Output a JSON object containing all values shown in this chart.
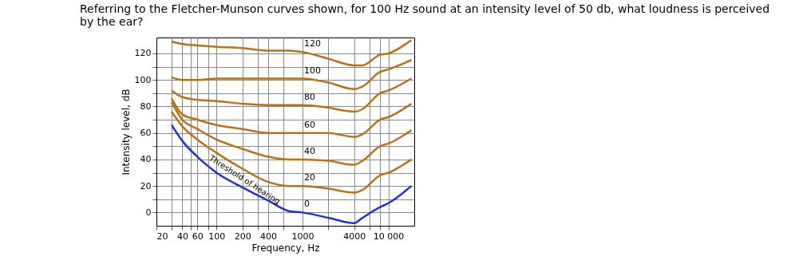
{
  "chart_data": {
    "type": "line",
    "title": "Referring to the Fletcher-Munson curves shown, for 100 Hz sound at an intensity level of 50 db, what loudness is perceived by the ear?",
    "xlabel": "Frequency, Hz",
    "ylabel": "Intensity level, dB",
    "log": "x",
    "x": [
      30,
      40,
      60,
      100,
      200,
      400,
      700,
      1000,
      2000,
      4000,
      5000,
      8000,
      10000,
      18500
    ],
    "series": [
      {
        "name": "0",
        "color": "#2233cc",
        "values": [
          66,
          54,
          42,
          30,
          19,
          9,
          1,
          0,
          -4,
          -8,
          -4,
          4,
          7,
          20
        ]
      },
      {
        "name": "20",
        "color": "#b8731a",
        "values": [
          76,
          65,
          55,
          45,
          33,
          23,
          20,
          20,
          18,
          15,
          17,
          28,
          30,
          40
        ]
      },
      {
        "name": "40",
        "color": "#b8731a",
        "values": [
          83,
          70,
          63,
          55,
          48,
          42,
          40,
          40,
          39,
          36,
          39,
          50,
          52,
          62
        ]
      },
      {
        "name": "60",
        "color": "#b8731a",
        "values": [
          86,
          74,
          70,
          66,
          63,
          60,
          60,
          60,
          60,
          57,
          59,
          70,
          72,
          82
        ]
      },
      {
        "name": "80",
        "color": "#b8731a",
        "values": [
          92,
          87,
          85,
          84,
          82,
          81,
          81,
          81,
          79,
          76,
          78,
          90,
          92,
          101
        ]
      },
      {
        "name": "100",
        "color": "#b8731a",
        "values": [
          102,
          100,
          100,
          101,
          101,
          101,
          101,
          101,
          98,
          93,
          95,
          106,
          108,
          115
        ]
      },
      {
        "name": "120",
        "color": "#b8731a",
        "values": [
          129,
          127,
          126,
          125,
          124,
          122,
          122,
          121,
          116,
          111,
          111,
          119,
          120,
          130
        ]
      }
    ],
    "xlim": [
      20,
      20000
    ],
    "xticks": [
      20,
      {
        "value": 30,
        "label": null
      },
      40,
      {
        "value": 50,
        "label": null
      },
      60,
      {
        "value": 80,
        "label": null
      },
      100,
      200,
      {
        "value": 300,
        "label": null
      },
      400,
      {
        "value": 600,
        "label": null
      },
      1000,
      {
        "value": 2000,
        "label": null
      },
      4000,
      {
        "value": 6000,
        "label": null
      },
      {
        "value": 8000,
        "label": null
      },
      {
        "value": 10000,
        "label": "10 000"
      }
    ],
    "ylim": [
      -10,
      132
    ],
    "yticks": [
      0,
      {
        "value": 10,
        "label": null
      },
      20,
      {
        "value": 30,
        "label": null
      },
      40,
      {
        "value": 50,
        "label": null
      },
      60,
      {
        "value": 70,
        "label": null
      },
      80,
      {
        "value": 90,
        "label": null
      },
      100,
      {
        "value": 110,
        "label": null
      },
      120
    ],
    "annotations": [
      {
        "text": "Threshold of hearing",
        "x": 200,
        "y": 22
      }
    ],
    "grid": true,
    "marker": "none",
    "line_style": "solid"
  }
}
